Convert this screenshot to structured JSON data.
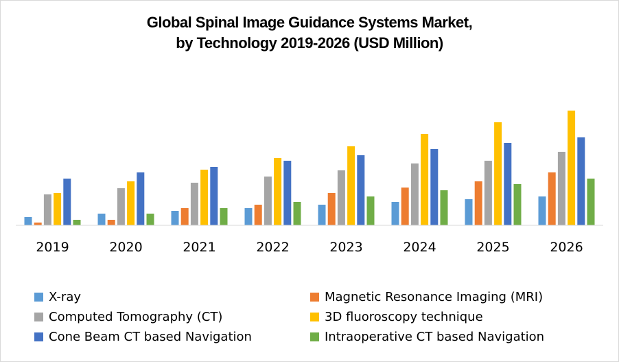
{
  "chart_data": {
    "type": "bar",
    "title": "Global Spinal Image Guidance Systems Market, by Technology 2019-2026 (USD Million)",
    "title_lines": [
      "Global Spinal Image Guidance Systems Market,",
      "by Technology 2019-2026 (USD Million)"
    ],
    "xlabel": "",
    "ylabel": "",
    "y_axis_visible": false,
    "grid": false,
    "legend_position": "bottom",
    "ylim": [
      0,
      180
    ],
    "categories": [
      "2019",
      "2020",
      "2021",
      "2022",
      "2023",
      "2024",
      "2025",
      "2026"
    ],
    "series": [
      {
        "name": "X-ray",
        "color": "#5B9BD5",
        "values": [
          12,
          17,
          21,
          25,
          30,
          34,
          38,
          42
        ]
      },
      {
        "name": "Magnetic Resonance Imaging (MRI)",
        "color": "#ED7D31",
        "values": [
          4,
          8,
          25,
          30,
          47,
          55,
          64,
          77
        ]
      },
      {
        "name": "Computed Tomography (CT)",
        "color": "#A5A5A5",
        "values": [
          45,
          54,
          62,
          71,
          80,
          90,
          94,
          107
        ]
      },
      {
        "name": "3D fluoroscopy technique",
        "color": "#FFC000",
        "values": [
          47,
          64,
          81,
          98,
          115,
          133,
          150,
          167
        ]
      },
      {
        "name": "Cone Beam CT based Navigation",
        "color": "#4472C4",
        "values": [
          68,
          77,
          85,
          94,
          102,
          111,
          120,
          128
        ]
      },
      {
        "name": "Intraoperative CT based Navigation",
        "color": "#70AD47",
        "values": [
          8,
          17,
          25,
          34,
          42,
          51,
          60,
          68
        ]
      }
    ],
    "legend_order": [
      0,
      1,
      2,
      3,
      4,
      5
    ]
  }
}
